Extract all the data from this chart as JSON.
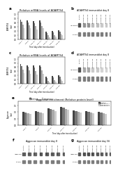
{
  "panel_a_title": "Relative mRNA levels of ADAMTS4",
  "panel_c_title": "Relative mRNA levels of ADAMTS4",
  "panel_e_title": "Aggrecan enrichment (Relative protein level)",
  "panel_b_title": "ADAMTS4 immunoblot day 8",
  "panel_d_title": "ADAMTS4 immunoblot day 8",
  "panel_f_title": "Aggrecan immunoblot day 8",
  "panel_g_title": "Aggrecan immunoblot day 56",
  "time_labels": [
    "day 2",
    "day 8",
    "day 15",
    "day 24",
    "day 32",
    "day 40",
    "day 56"
  ],
  "bar_colors": [
    "#444444",
    "#777777",
    "#aaaaaa",
    "#cccccc"
  ],
  "panel_a_data": [
    [
      0.95,
      0.9,
      0.88,
      0.9,
      0.38,
      0.4,
      0.42
    ],
    [
      0.85,
      0.82,
      0.78,
      0.8,
      0.3,
      0.32,
      0.35
    ],
    [
      0.7,
      0.68,
      0.62,
      0.65,
      0.18,
      0.2,
      0.25
    ],
    [
      0.55,
      0.52,
      0.48,
      0.52,
      0.1,
      0.12,
      0.18
    ]
  ],
  "panel_c_data": [
    [
      0.95,
      0.9,
      0.88,
      0.9,
      0.35,
      0.38,
      0.4
    ],
    [
      0.85,
      0.82,
      0.78,
      0.8,
      0.28,
      0.3,
      0.33
    ],
    [
      0.68,
      0.65,
      0.6,
      0.63,
      0.15,
      0.18,
      0.22
    ],
    [
      0.5,
      0.48,
      0.44,
      0.48,
      0.08,
      0.1,
      0.15
    ]
  ],
  "panel_e_data": [
    [
      1.0,
      1.05,
      1.3,
      1.4,
      1.1,
      1.05,
      1.0
    ],
    [
      0.95,
      1.0,
      1.22,
      1.32,
      1.05,
      1.0,
      0.95
    ],
    [
      0.9,
      0.95,
      1.15,
      1.25,
      1.0,
      0.95,
      0.9
    ],
    [
      0.85,
      0.9,
      1.08,
      1.18,
      0.95,
      0.9,
      0.85
    ]
  ],
  "bg_color": "#ffffff",
  "text_color": "#000000",
  "legend_labels": [
    "siControl",
    "siADAMTS4-T1",
    "siADAMTS4-T2",
    "siADAMTS4-T3"
  ],
  "wb_sample_labels": [
    "siControl",
    "siADAMTS4-T1a",
    "siADAMTS4-T1b",
    "siADAMTS4-T2a",
    "siADAMTS4-T2b",
    "siADAMTS4-T3a",
    "siADAMTS4-T3b",
    "siADAMTS4-T3c"
  ],
  "wb_b_bands_row1": [
    0.8,
    0.5,
    0.5,
    0.3,
    0.3,
    0.25,
    0.25,
    0.25
  ],
  "wb_b_bands_row2": [
    0.85,
    0.85,
    0.85,
    0.85,
    0.85,
    0.85,
    0.85,
    0.85
  ],
  "wb_d_bands_row1": [
    0.8,
    0.4,
    0.4,
    0.25,
    0.25,
    0.2,
    0.2,
    0.2
  ],
  "wb_d_bands_row2": [
    0.85,
    0.85,
    0.85,
    0.85,
    0.85,
    0.85,
    0.85,
    0.85
  ],
  "wb_f_bands_row1": [
    0.75,
    0.72,
    0.7,
    0.78,
    0.76,
    0.74,
    0.72,
    0.7
  ],
  "wb_f_bands_row2": [
    0.85,
    0.85,
    0.85,
    0.85,
    0.85,
    0.85,
    0.85,
    0.85
  ],
  "wb_g_bands_row1": [
    0.75,
    0.8,
    0.82,
    0.78,
    0.76,
    0.74,
    0.72,
    0.7
  ],
  "wb_g_bands_row2": [
    0.85,
    0.85,
    0.85,
    0.85,
    0.85,
    0.85,
    0.85,
    0.85
  ]
}
